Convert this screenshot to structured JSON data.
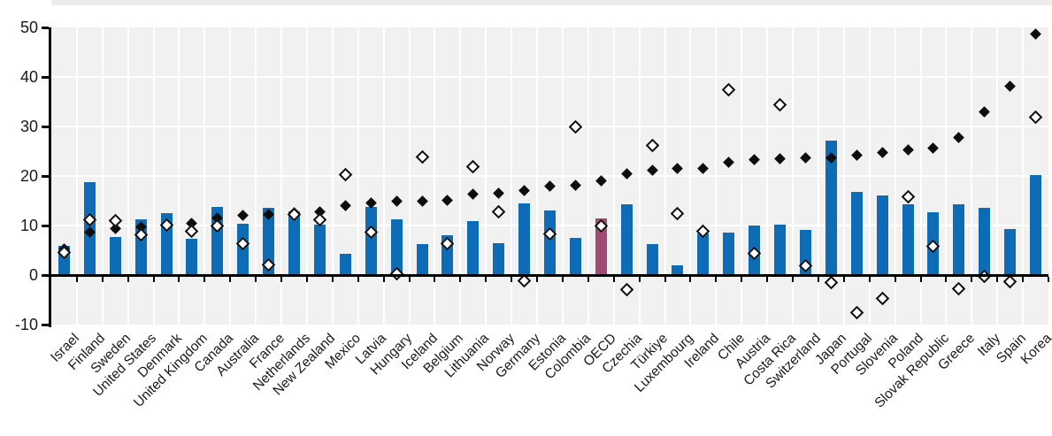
{
  "chart_data": {
    "type": "bar",
    "note": "bar chart with two diamond scatter overlays; no title/legend visible in crop",
    "categories": [
      "Israel",
      "Finland",
      "Sweden",
      "United States",
      "Denmark",
      "United Kingdom",
      "Canada",
      "Australia",
      "France",
      "Netherlands",
      "New Zealand",
      "Mexico",
      "Latvia",
      "Hungary",
      "Iceland",
      "Belgium",
      "Lithuania",
      "Norway",
      "Germany",
      "Estonia",
      "Colombia",
      "OECD",
      "Czechia",
      "Türkiye",
      "Luxembourg",
      "Ireland",
      "Chile",
      "Austria",
      "Costa Rica",
      "Switzerland",
      "Japan",
      "Portugal",
      "Slovenia",
      "Poland",
      "Slovak Republic",
      "Greece",
      "Italy",
      "Spain",
      "Korea"
    ],
    "series": [
      {
        "name": "bar",
        "type": "bar",
        "marker": "none",
        "values": [
          5.9,
          18.7,
          7.7,
          11.2,
          12.5,
          7.4,
          13.7,
          10.4,
          13.6,
          12.8,
          10.2,
          4.3,
          13.7,
          11.3,
          6.3,
          8.0,
          10.9,
          6.4,
          14.4,
          13.1,
          7.5,
          11.4,
          14.3,
          6.3,
          2.0,
          8.4,
          8.6,
          10.0,
          10.2,
          9.1,
          27.2,
          16.8,
          16.0,
          14.2,
          12.7,
          14.2,
          13.6,
          9.2,
          20.2
        ]
      },
      {
        "name": "filled_diamond",
        "type": "scatter",
        "marker": "filled-diamond",
        "values": [
          5.2,
          8.6,
          9.4,
          9.8,
          10.3,
          10.4,
          11.5,
          12.0,
          12.2,
          12.6,
          12.8,
          14.1,
          14.6,
          14.9,
          14.9,
          15.1,
          16.3,
          16.6,
          17.1,
          18.0,
          18.2,
          19.1,
          20.5,
          21.1,
          21.5,
          21.6,
          22.8,
          23.3,
          23.4,
          23.6,
          23.6,
          24.2,
          24.7,
          25.2,
          25.7,
          27.8,
          32.9,
          38.2,
          48.7
        ]
      },
      {
        "name": "open_diamond",
        "type": "scatter",
        "marker": "open-diamond",
        "values": [
          4.6,
          11.2,
          10.9,
          8.2,
          10.1,
          8.8,
          9.9,
          6.3,
          2.1,
          12.3,
          11.2,
          20.2,
          8.7,
          0.3,
          23.9,
          6.4,
          21.9,
          12.8,
          -1.2,
          8.3,
          29.9,
          10.0,
          -3.0,
          26.2,
          12.4,
          8.8,
          37.4,
          4.3,
          34.4,
          1.9,
          -1.5,
          -7.5,
          -4.8,
          15.8,
          5.8,
          -2.7,
          -0.3,
          -1.3,
          31.9
        ]
      }
    ],
    "highlight_category": "OECD",
    "xlabel": "",
    "ylabel": "",
    "ylim": [
      -10,
      50
    ],
    "ytick_labels": [
      "50",
      "40",
      "30",
      "20",
      "10",
      "0",
      "-10"
    ],
    "ytick_values": [
      50,
      40,
      30,
      20,
      10,
      0,
      -10
    ],
    "xtick_rotation": 45,
    "grid": "white gridlines on light-gray plot background, vertical line at every category boundary",
    "legend_position": "none visible",
    "colors": {
      "bar": "#0e6bb5",
      "highlight_bar": "#a04a74",
      "plot_background": "#f1f1f1",
      "gridline": "#ffffff",
      "axis": "#000000",
      "marker_filled": "#0d0d0d",
      "marker_open_fill": "#ffffff",
      "marker_open_stroke": "#0d0d0d",
      "tick_label_text": "#1a1a1a",
      "top_strip": "#ececec"
    }
  }
}
